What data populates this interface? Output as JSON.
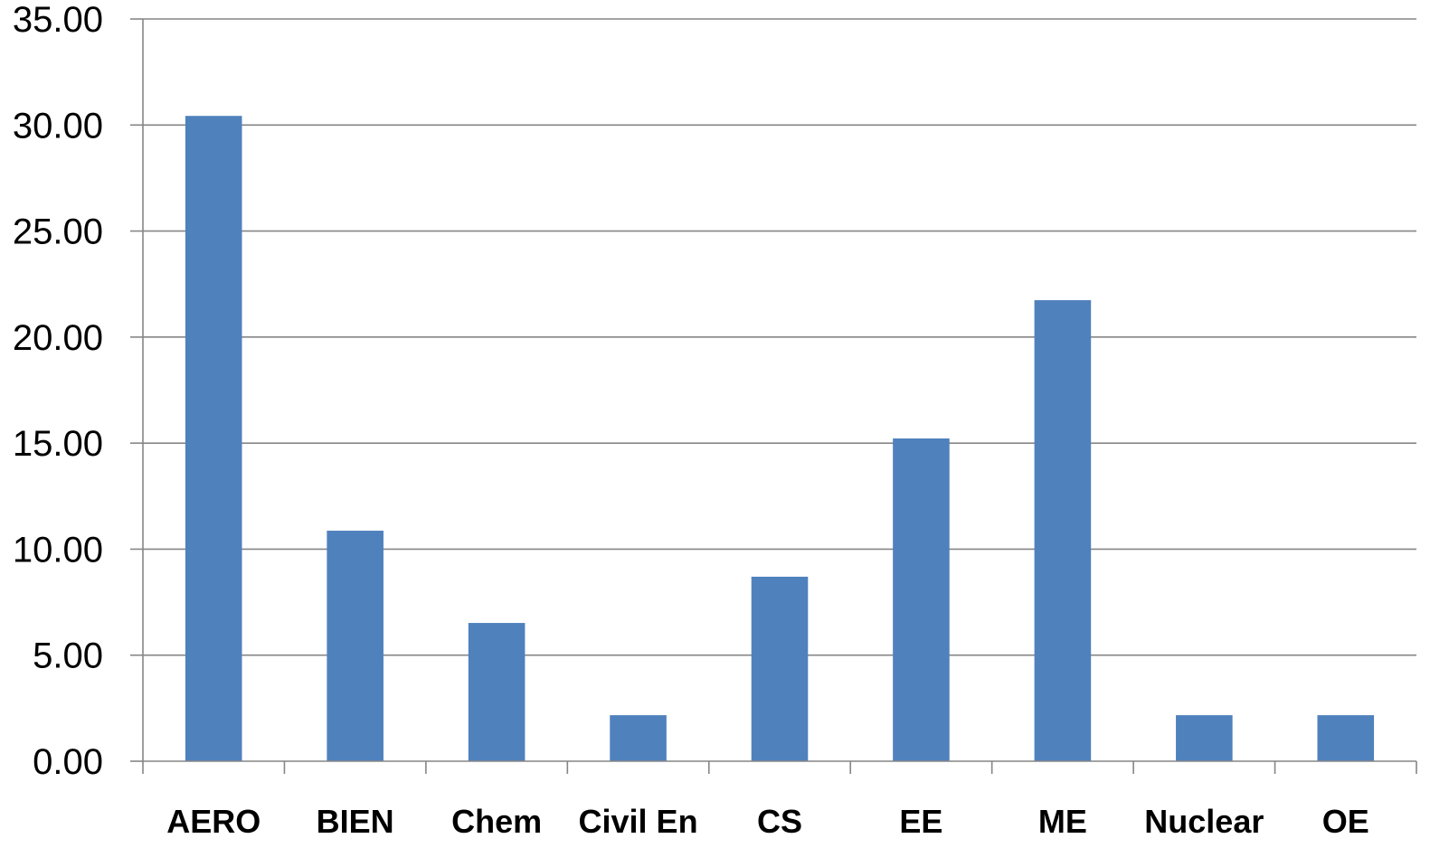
{
  "chart_data": {
    "type": "bar",
    "title": "",
    "xlabel": "",
    "ylabel": "",
    "categories": [
      "AERO",
      "BIEN",
      "Chem",
      "Civil En",
      "CS",
      "EE",
      "ME",
      "Nuclear",
      "OE"
    ],
    "values": [
      30.43,
      10.87,
      6.52,
      2.17,
      8.7,
      15.22,
      21.74,
      2.17,
      2.17
    ],
    "ylim": [
      0,
      35
    ],
    "yticks": [
      0,
      5,
      10,
      15,
      20,
      25,
      30,
      35
    ],
    "yticklabels": [
      "0.00",
      "5.00",
      "10.00",
      "15.00",
      "20.00",
      "25.00",
      "30.00",
      "35.00"
    ],
    "grid": true,
    "legend": "none",
    "colors": {
      "bar": "#4F81BD",
      "grid": "#868686",
      "axis": "#868686"
    }
  }
}
